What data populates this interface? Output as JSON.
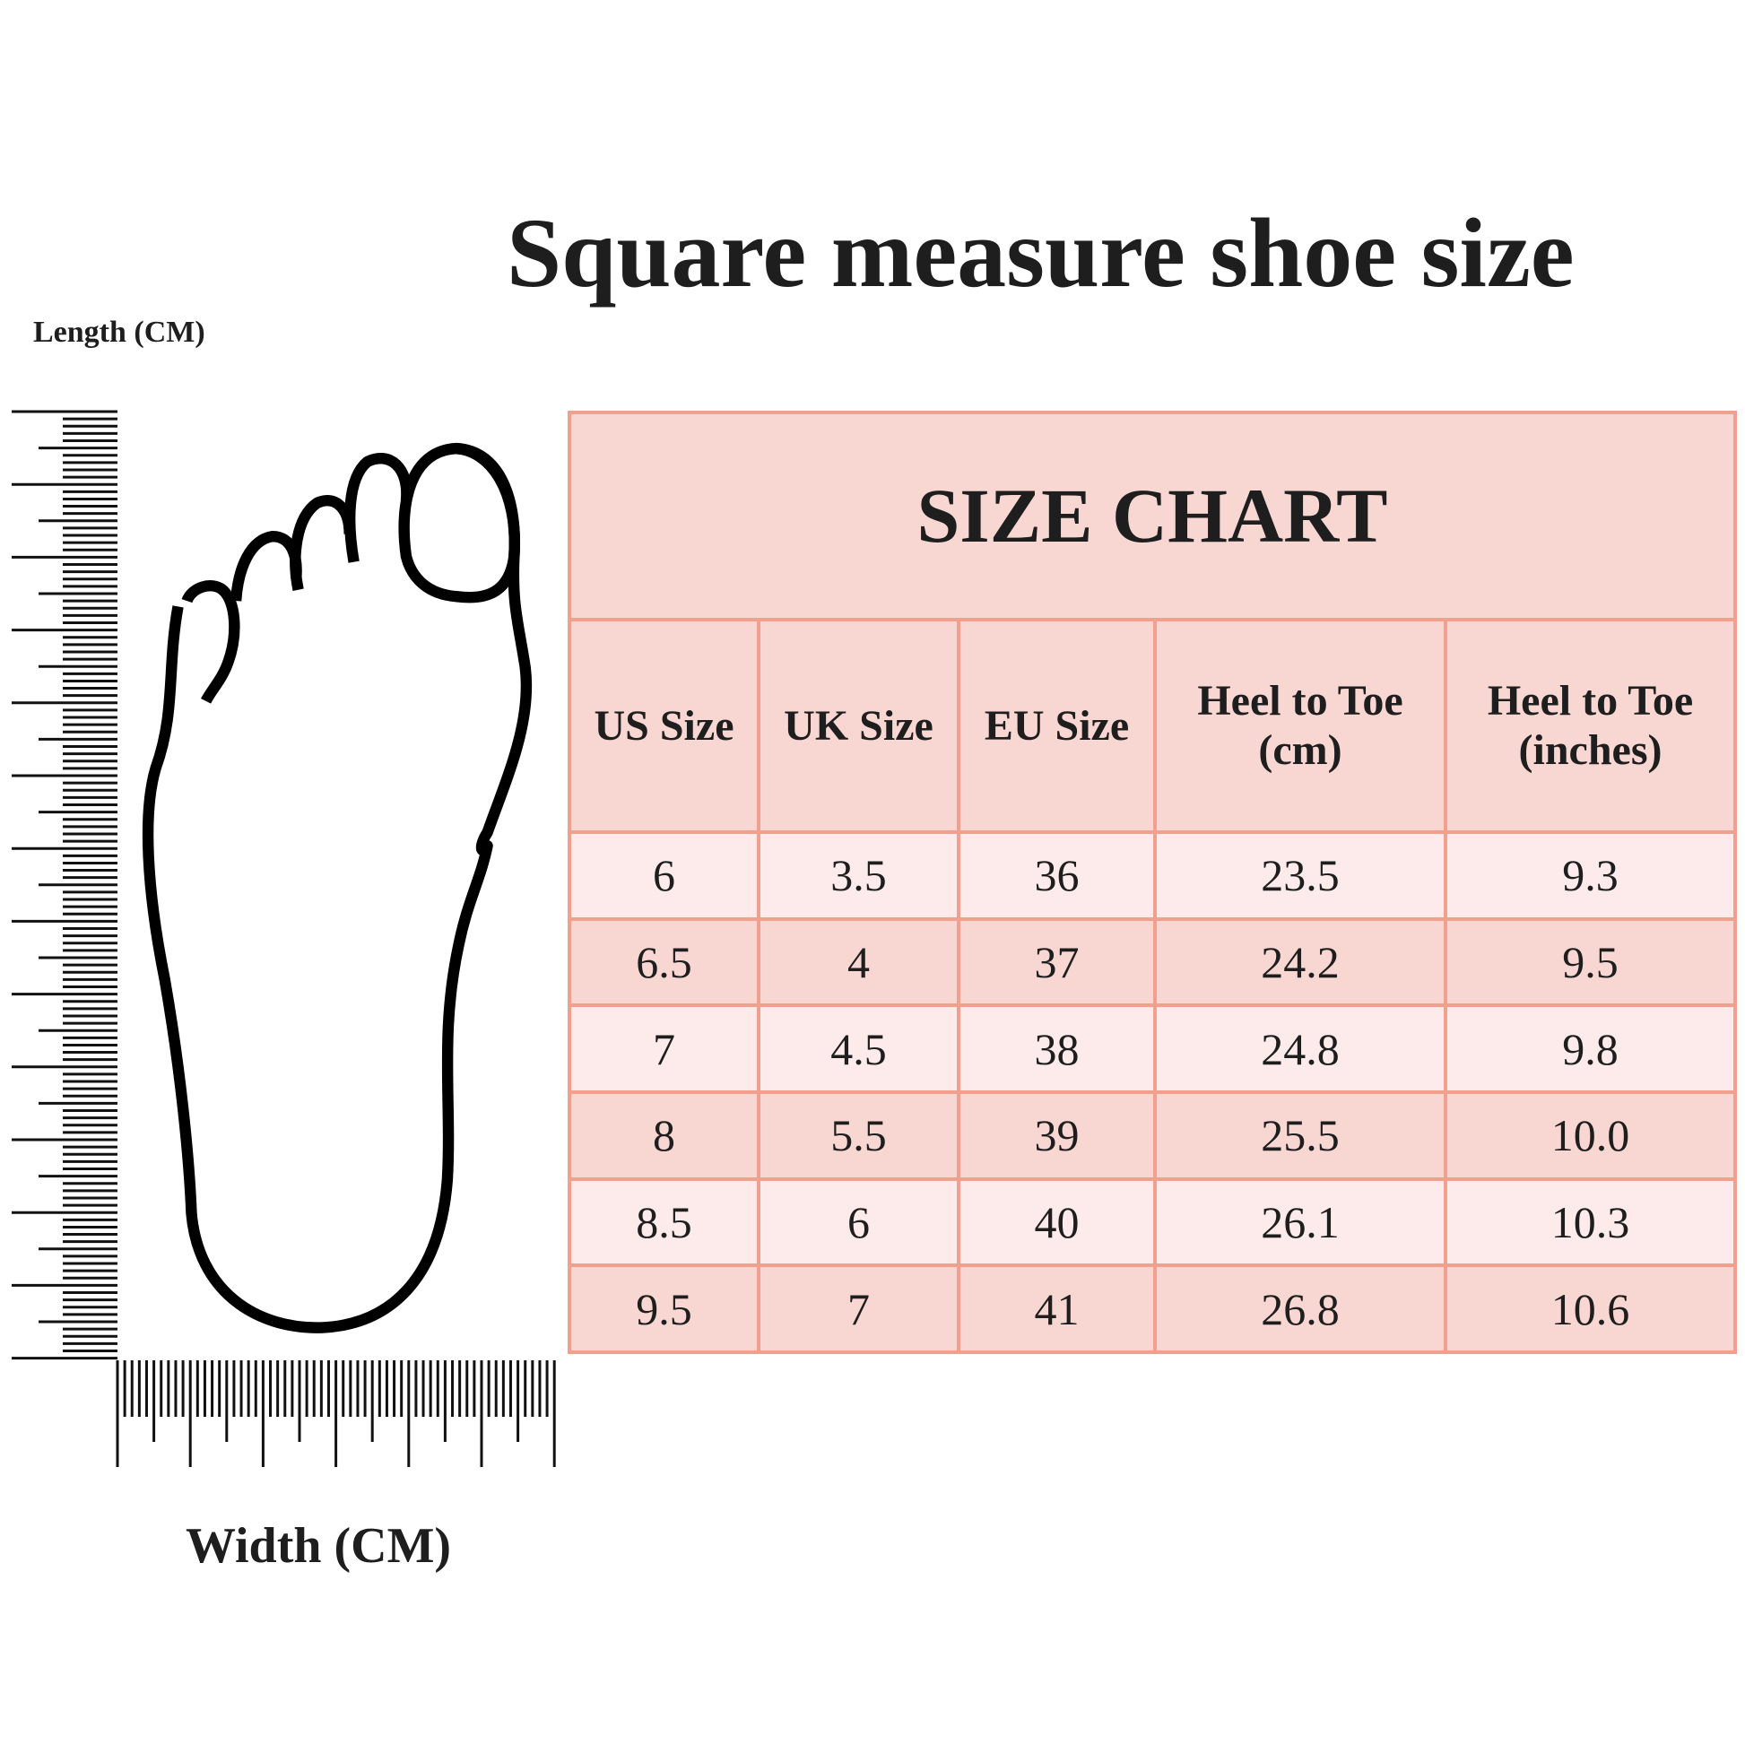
{
  "title": "Square measure shoe size",
  "axes": {
    "length_label": "Length (CM)",
    "width_label": "Width (CM)"
  },
  "colors": {
    "border": "#f0a08c",
    "header_bg": "#f8d7d3",
    "row_light": "#fcebea",
    "row_dark": "#f8d7d3",
    "text": "#1e1e1e"
  },
  "table": {
    "title": "SIZE CHART",
    "headers": [
      "US Size",
      "UK Size",
      "EU Size",
      "Heel to Toe (cm)",
      "Heel to Toe (inches)"
    ],
    "rows": [
      [
        "6",
        "3.5",
        "36",
        "23.5",
        "9.3"
      ],
      [
        "6.5",
        "4",
        "37",
        "24.2",
        "9.5"
      ],
      [
        "7",
        "4.5",
        "38",
        "24.8",
        "9.8"
      ],
      [
        "8",
        "5.5",
        "39",
        "25.5",
        "10.0"
      ],
      [
        "8.5",
        "6",
        "40",
        "26.1",
        "10.3"
      ],
      [
        "9.5",
        "7",
        "41",
        "26.8",
        "10.6"
      ]
    ]
  }
}
